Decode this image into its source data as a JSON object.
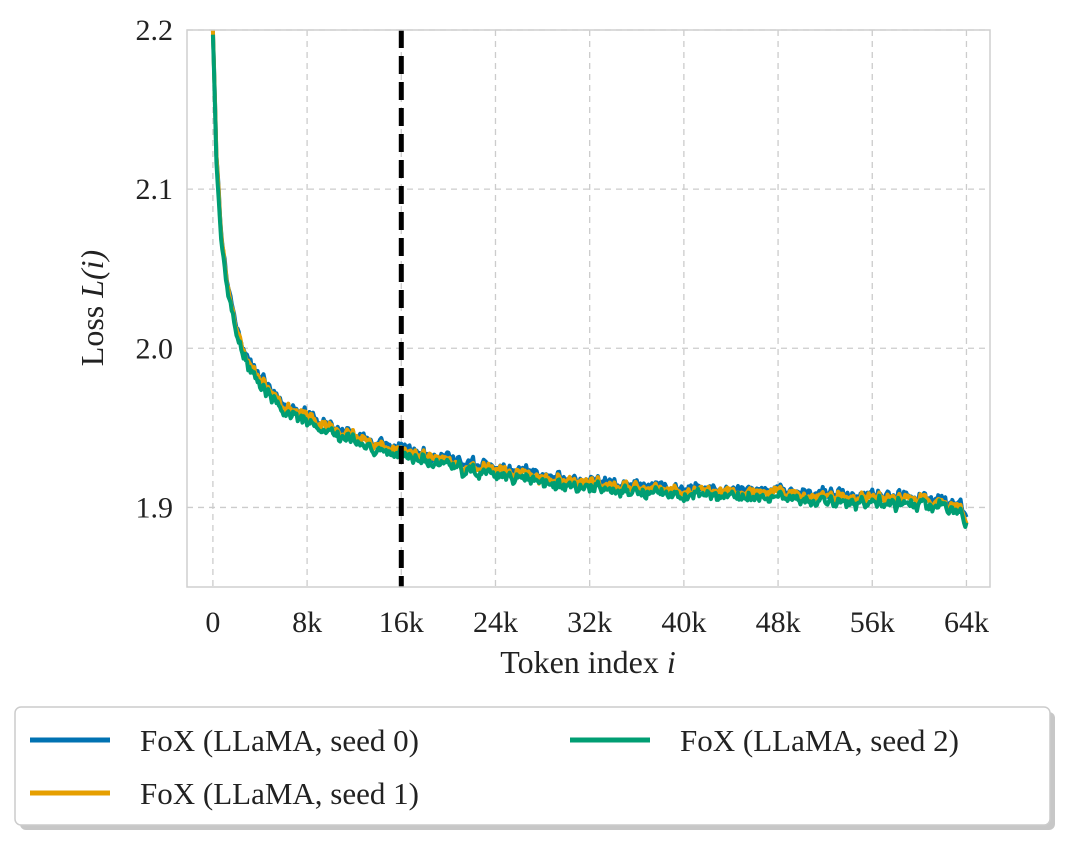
{
  "chart_data": {
    "type": "line",
    "title": "",
    "xlabel": "Token index",
    "xlabel_var": "i",
    "ylabel": "Loss",
    "ylabel_var": "L(i)",
    "xlim": [
      -2200,
      66000
    ],
    "ylim": [
      1.85,
      2.2
    ],
    "xticks": [
      0,
      8000,
      16000,
      24000,
      32000,
      40000,
      48000,
      56000,
      64000
    ],
    "xtick_labels": [
      "0",
      "8k",
      "16k",
      "24k",
      "32k",
      "40k",
      "48k",
      "56k",
      "64k"
    ],
    "yticks": [
      1.9,
      2.0,
      2.1,
      2.2
    ],
    "ytick_labels": [
      "1.9",
      "2.0",
      "2.1",
      "2.2"
    ],
    "grid": true,
    "grid_style": "dashed",
    "vertical_line": {
      "x": 16000,
      "style": "dashed",
      "color": "#000000"
    },
    "legend": {
      "placement": "below",
      "columns": 2
    },
    "base_curve": {
      "x": [
        0,
        300,
        700,
        1200,
        2000,
        3000,
        4000,
        5000,
        6000,
        7000,
        8000,
        10000,
        12000,
        14000,
        16000,
        18000,
        20000,
        22000,
        24000,
        26000,
        28000,
        30000,
        32000,
        34000,
        36000,
        38000,
        40000,
        42000,
        44000,
        46000,
        48000,
        50000,
        52000,
        54000,
        56000,
        58000,
        60000,
        62000,
        63500,
        64000
      ],
      "y": [
        2.2,
        2.12,
        2.07,
        2.04,
        2.01,
        1.99,
        1.978,
        1.97,
        1.963,
        1.958,
        1.955,
        1.948,
        1.943,
        1.938,
        1.934,
        1.931,
        1.928,
        1.925,
        1.923,
        1.92,
        1.918,
        1.916,
        1.914,
        1.912,
        1.911,
        1.91,
        1.909,
        1.909,
        1.908,
        1.908,
        1.908,
        1.907,
        1.906,
        1.905,
        1.905,
        1.904,
        1.903,
        1.901,
        1.898,
        1.892
      ]
    },
    "series": [
      {
        "name": "FoX (LLaMA, seed 0)",
        "color": "#0072b2",
        "offset": 0.003,
        "noise_seed": 11
      },
      {
        "name": "FoX (LLaMA, seed 1)",
        "color": "#e69f00",
        "offset": 0.0015,
        "noise_seed": 23
      },
      {
        "name": "FoX (LLaMA, seed 2)",
        "color": "#009e73",
        "offset": -0.0015,
        "noise_seed": 37
      }
    ]
  }
}
